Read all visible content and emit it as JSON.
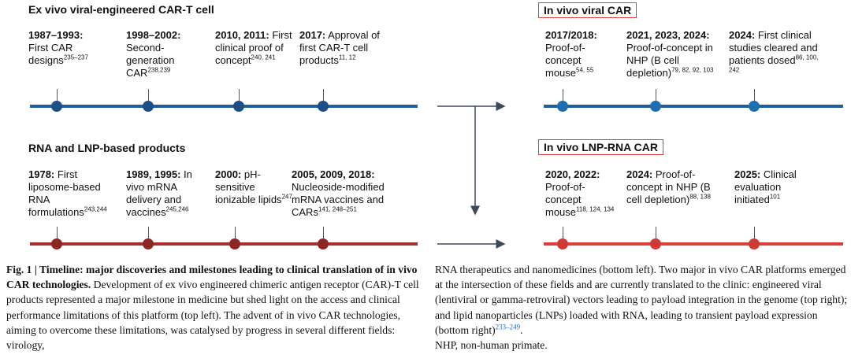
{
  "panels": [
    {
      "title": "Ex vivo viral-engineered CAR-T cell",
      "events": [
        {
          "date": "1987–1993:",
          "text": "First CAR designs",
          "ref": "235–237"
        },
        {
          "date": "1998–2002:",
          "text": "Second-generation CAR",
          "ref": "238,239"
        },
        {
          "date": "2010, 2011:",
          "text": "First clinical proof of concept",
          "ref": "240, 241"
        },
        {
          "date": "2017:",
          "text": "Approval of first CAR-T cell products",
          "ref": "11, 12"
        }
      ]
    },
    {
      "title": "RNA and LNP-based products",
      "events": [
        {
          "date": "1978:",
          "text": "First liposome-based RNA formulations",
          "ref": "243,244"
        },
        {
          "date": "1989, 1995:",
          "text": "In vivo mRNA delivery and vaccines",
          "ref": "245,246"
        },
        {
          "date": "2000:",
          "text": "pH-sensitive ionizable lipids",
          "ref": "247"
        },
        {
          "date": "2005, 2009, 2018:",
          "text": "Nucleoside-modified mRNA vaccines and CARs",
          "ref": "141, 248–251"
        }
      ]
    },
    {
      "title": "In vivo viral CAR",
      "events": [
        {
          "date": "2017/2018:",
          "text": "Proof-of-concept mouse",
          "ref": "54, 55"
        },
        {
          "date": "2021, 2023, 2024:",
          "text": "Proof-of-concept in NHP (B cell depletion)",
          "ref": "79, 82, 92, 103"
        },
        {
          "date": "2024:",
          "text": "First clinical studies cleared and patients dosed",
          "ref": "86, 100, 242"
        }
      ]
    },
    {
      "title": "In vivo LNP-RNA CAR",
      "events": [
        {
          "date": "2020, 2022:",
          "text": "Proof-of-concept mouse",
          "ref": "118, 124, 134"
        },
        {
          "date": "2024:",
          "text": "Proof-of-concept in NHP (B cell depletion)",
          "ref": "88, 138"
        },
        {
          "date": "2025:",
          "text": "Clinical evaluation initiated",
          "ref": "101"
        }
      ]
    }
  ],
  "caption": {
    "heading": "Fig. 1 | Timeline: major discoveries and milestones leading to clinical translation of in vivo CAR technologies.",
    "left": "Development of ex vivo engineered chimeric antigen receptor (CAR)-T cell products represented a major milestone in medicine but shed light on the access and clinical performance limitations of this platform (top left). The advent of in vivo CAR technologies, aiming to overcome these limitations, was catalysed by progress in several different fields: virology,",
    "right": "RNA therapeutics and nanomedicines (bottom left). Two major in vivo CAR platforms emerged at the intersection of these fields and are currently translated to the clinic: engineered viral (lentiviral or gamma-retroviral) vectors leading to payload integration in the genome (top right); and lipid nanoparticles (LNPs) loaded with RNA, leading to transient payload expression (bottom right)",
    "ref": "233–249",
    "end": ".",
    "note": "NHP, non-human primate."
  }
}
